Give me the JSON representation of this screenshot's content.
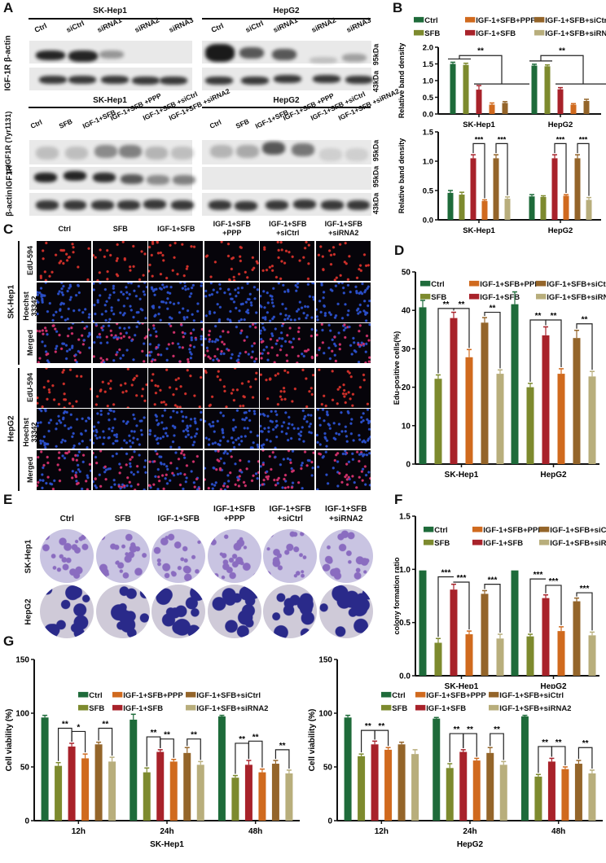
{
  "colors": {
    "Ctrl": "#1e6b3a",
    "SFB": "#7d8a2e",
    "IGF-1+SFB": "#a8222a",
    "IGF-1+SFB+PPP": "#d06a1e",
    "IGF-1+SFB+siCtrl": "#94652a",
    "IGF-1+SFB+siRNA2": "#b8ae7c"
  },
  "legend": [
    "Ctrl",
    "IGF-1+SFB+PPP",
    "IGF-1+SFB+siCtrl",
    "SFB",
    "IGF-1+SFB",
    "IGF-1+SFB+siRNA2"
  ],
  "panelA": {
    "letter": "A",
    "top": {
      "cells": [
        "SK-Hep1",
        "HepG2"
      ],
      "lanes": [
        "Ctrl",
        "siCtrl",
        "siRNA1",
        "siRNA2",
        "siRNA3"
      ],
      "rows": [
        "IGF-1R",
        "β-actin"
      ],
      "kda": [
        "95kDa",
        "43kDa"
      ]
    },
    "bottom": {
      "cells": [
        "SK-Hep1",
        "HepG2"
      ],
      "lanes": [
        "Ctrl",
        "SFB",
        "IGF-1+SFB",
        "IGF-1+SFB +PPP",
        "IGF-1+SFB +siCtrl",
        "IGF-1+SFB +siRNA2"
      ],
      "rows": [
        "p-IGF1R (Tyr1131)",
        "IGF1R",
        "β-actin"
      ],
      "kda": [
        "95kDa",
        "95kDa",
        "43kDa"
      ]
    }
  },
  "panelB": {
    "letter": "B"
  },
  "panelC": {
    "letter": "C",
    "columns": [
      "Ctrl",
      "SFB",
      "IGF-1+SFB",
      "IGF-1+SFB\n+PPP",
      "IGF-1+SFB\n+siCtrl",
      "IGF-1+SFB\n+siRNA2"
    ],
    "groups": [
      "SK-Hep1",
      "HepG2"
    ],
    "rows": [
      "EdU-594",
      "Hoechst 33342",
      "Merged"
    ]
  },
  "panelD": {
    "letter": "D"
  },
  "panelE": {
    "letter": "E",
    "columns": [
      "Ctrl",
      "SFB",
      "IGF-1+SFB",
      "IGF-1+SFB\n+PPP",
      "IGF-1+SFB\n+siCtrl",
      "IGF-1+SFB\n+siRNA2"
    ],
    "rows": [
      "SK-Hep1",
      "HepG2"
    ]
  },
  "panelF": {
    "letter": "F"
  },
  "panelG": {
    "letter": "G"
  },
  "chart_data": [
    {
      "id": "B_top",
      "type": "bar",
      "title": "",
      "ylabel": "Relative band density",
      "xlabel": "",
      "ylim": [
        0,
        2.0
      ],
      "yticks": [
        0.0,
        0.5,
        1.0,
        1.5,
        2.0
      ],
      "categories": [
        "SK-Hep1",
        "HepG2"
      ],
      "series": [
        {
          "name": "Ctrl",
          "values": [
            1.5,
            1.45
          ],
          "err": [
            0.05,
            0.04
          ]
        },
        {
          "name": "SFB",
          "values": [
            1.47,
            1.43
          ],
          "err": [
            0.05,
            0.04
          ]
        },
        {
          "name": "IGF-1+SFB",
          "values": [
            0.73,
            0.74
          ],
          "err": [
            0.12,
            0.05
          ]
        },
        {
          "name": "IGF-1+SFB+PPP",
          "values": [
            0.28,
            0.28
          ],
          "err": [
            0.05,
            0.03
          ]
        },
        {
          "name": "IGF-1+SFB+siCtrl",
          "values": [
            0.33,
            0.39
          ],
          "err": [
            0.04,
            0.05
          ]
        }
      ],
      "annotations": [
        "**",
        "**"
      ]
    },
    {
      "id": "B_bottom",
      "type": "bar",
      "ylabel": "Relative band density",
      "ylim": [
        0,
        1.5
      ],
      "yticks": [
        0.0,
        0.5,
        1.0,
        1.5
      ],
      "categories": [
        "SK-Hep1",
        "HepG2"
      ],
      "series": [
        {
          "name": "Ctrl",
          "values": [
            0.46,
            0.4
          ],
          "err": [
            0.04,
            0.03
          ]
        },
        {
          "name": "SFB",
          "values": [
            0.43,
            0.39
          ],
          "err": [
            0.04,
            0.02
          ]
        },
        {
          "name": "IGF-1+SFB",
          "values": [
            1.05,
            1.05
          ],
          "err": [
            0.06,
            0.06
          ]
        },
        {
          "name": "IGF-1+SFB+PPP",
          "values": [
            0.32,
            0.41
          ],
          "err": [
            0.02,
            0.02
          ]
        },
        {
          "name": "IGF-1+SFB+siCtrl",
          "values": [
            1.05,
            1.05
          ],
          "err": [
            0.06,
            0.06
          ]
        },
        {
          "name": "IGF-1+SFB+siRNA2",
          "values": [
            0.36,
            0.34
          ],
          "err": [
            0.03,
            0.04
          ]
        }
      ],
      "annotations": [
        "***",
        "***",
        "***",
        "***"
      ]
    },
    {
      "id": "D",
      "type": "bar",
      "ylabel": "Edu-positive cells(%)",
      "ylim": [
        0,
        50
      ],
      "yticks": [
        0,
        10,
        20,
        30,
        40,
        50
      ],
      "categories": [
        "SK-Hep1",
        "HepG2"
      ],
      "series": [
        {
          "name": "Ctrl",
          "values": [
            40.8,
            41.6
          ],
          "err": [
            1.8,
            3.2
          ]
        },
        {
          "name": "SFB",
          "values": [
            22.2,
            20.0
          ],
          "err": [
            1.0,
            1.0
          ]
        },
        {
          "name": "IGF-1+SFB",
          "values": [
            38.0,
            33.5
          ],
          "err": [
            1.5,
            2.2
          ]
        },
        {
          "name": "IGF-1+SFB+PPP",
          "values": [
            27.8,
            23.5
          ],
          "err": [
            2.0,
            1.3
          ]
        },
        {
          "name": "IGF-1+SFB+siCtrl",
          "values": [
            36.8,
            32.8
          ],
          "err": [
            1.3,
            2.0
          ]
        },
        {
          "name": "IGF-1+SFB+siRNA2",
          "values": [
            23.5,
            22.8
          ],
          "err": [
            1.0,
            1.3
          ]
        }
      ],
      "annotations": [
        "**",
        "**",
        "**",
        "**",
        "**",
        "**"
      ]
    },
    {
      "id": "F",
      "type": "bar",
      "ylabel": "colony formation ratio",
      "ylim": [
        0,
        1.5
      ],
      "yticks": [
        0.0,
        0.5,
        1.0,
        1.5
      ],
      "categories": [
        "SK-Hep1",
        "HepG2"
      ],
      "series": [
        {
          "name": "Ctrl",
          "values": [
            0.99,
            0.99
          ],
          "err": [
            0,
            0
          ]
        },
        {
          "name": "SFB",
          "values": [
            0.31,
            0.37
          ],
          "err": [
            0.04,
            0.02
          ]
        },
        {
          "name": "IGF-1+SFB",
          "values": [
            0.81,
            0.73
          ],
          "err": [
            0.05,
            0.03
          ]
        },
        {
          "name": "IGF-1+SFB+PPP",
          "values": [
            0.39,
            0.42
          ],
          "err": [
            0.03,
            0.04
          ]
        },
        {
          "name": "IGF-1+SFB+siCtrl",
          "values": [
            0.77,
            0.7
          ],
          "err": [
            0.03,
            0.03
          ]
        },
        {
          "name": "IGF-1+SFB+siRNA2",
          "values": [
            0.35,
            0.38
          ],
          "err": [
            0.04,
            0.03
          ]
        }
      ],
      "annotations": [
        "***",
        "***",
        "***",
        "***",
        "***",
        "***"
      ]
    },
    {
      "id": "G_left",
      "type": "bar",
      "ylabel": "Cell viability (%)",
      "xlabel": "SK-Hep1",
      "ylim": [
        0,
        150
      ],
      "yticks": [
        0,
        50,
        100,
        150
      ],
      "categories": [
        "12h",
        "24h",
        "48h"
      ],
      "series": [
        {
          "name": "Ctrl",
          "values": [
            96,
            94,
            97
          ],
          "err": [
            2,
            5,
            1
          ]
        },
        {
          "name": "SFB",
          "values": [
            51,
            45,
            40
          ],
          "err": [
            3,
            4,
            2
          ]
        },
        {
          "name": "IGF-1+SFB",
          "values": [
            69,
            64,
            52
          ],
          "err": [
            3,
            2,
            4
          ]
        },
        {
          "name": "IGF-1+SFB+PPP",
          "values": [
            58,
            55,
            45
          ],
          "err": [
            4,
            2,
            3
          ]
        },
        {
          "name": "IGF-1+SFB+siCtrl",
          "values": [
            71,
            63,
            53
          ],
          "err": [
            2,
            5,
            3
          ]
        },
        {
          "name": "IGF-1+SFB+siRNA2",
          "values": [
            55,
            52,
            44
          ],
          "err": [
            4,
            3,
            3
          ]
        }
      ],
      "annotations": [
        "**",
        "*",
        "**",
        "**",
        "**",
        "**",
        "**",
        "**",
        "**"
      ]
    },
    {
      "id": "G_right",
      "type": "bar",
      "ylabel": "Cell viability (%)",
      "xlabel": "HepG2",
      "ylim": [
        0,
        150
      ],
      "yticks": [
        0,
        50,
        100,
        150
      ],
      "categories": [
        "12h",
        "24h",
        "48h"
      ],
      "series": [
        {
          "name": "Ctrl",
          "values": [
            96,
            95,
            97
          ],
          "err": [
            2,
            1,
            1
          ]
        },
        {
          "name": "SFB",
          "values": [
            60,
            49,
            41
          ],
          "err": [
            2,
            4,
            2
          ]
        },
        {
          "name": "IGF-1+SFB",
          "values": [
            71,
            64,
            55
          ],
          "err": [
            3,
            2,
            3
          ]
        },
        {
          "name": "IGF-1+SFB+PPP",
          "values": [
            66,
            56,
            48
          ],
          "err": [
            2,
            2,
            2
          ]
        },
        {
          "name": "IGF-1+SFB+siCtrl",
          "values": [
            71,
            63,
            53
          ],
          "err": [
            2,
            5,
            3
          ]
        },
        {
          "name": "IGF-1+SFB+siRNA2",
          "values": [
            62,
            52,
            44
          ],
          "err": [
            4,
            3,
            3
          ]
        }
      ],
      "annotations": [
        "**",
        "**",
        "**",
        "**",
        "**",
        "**",
        "**",
        "**"
      ]
    }
  ]
}
